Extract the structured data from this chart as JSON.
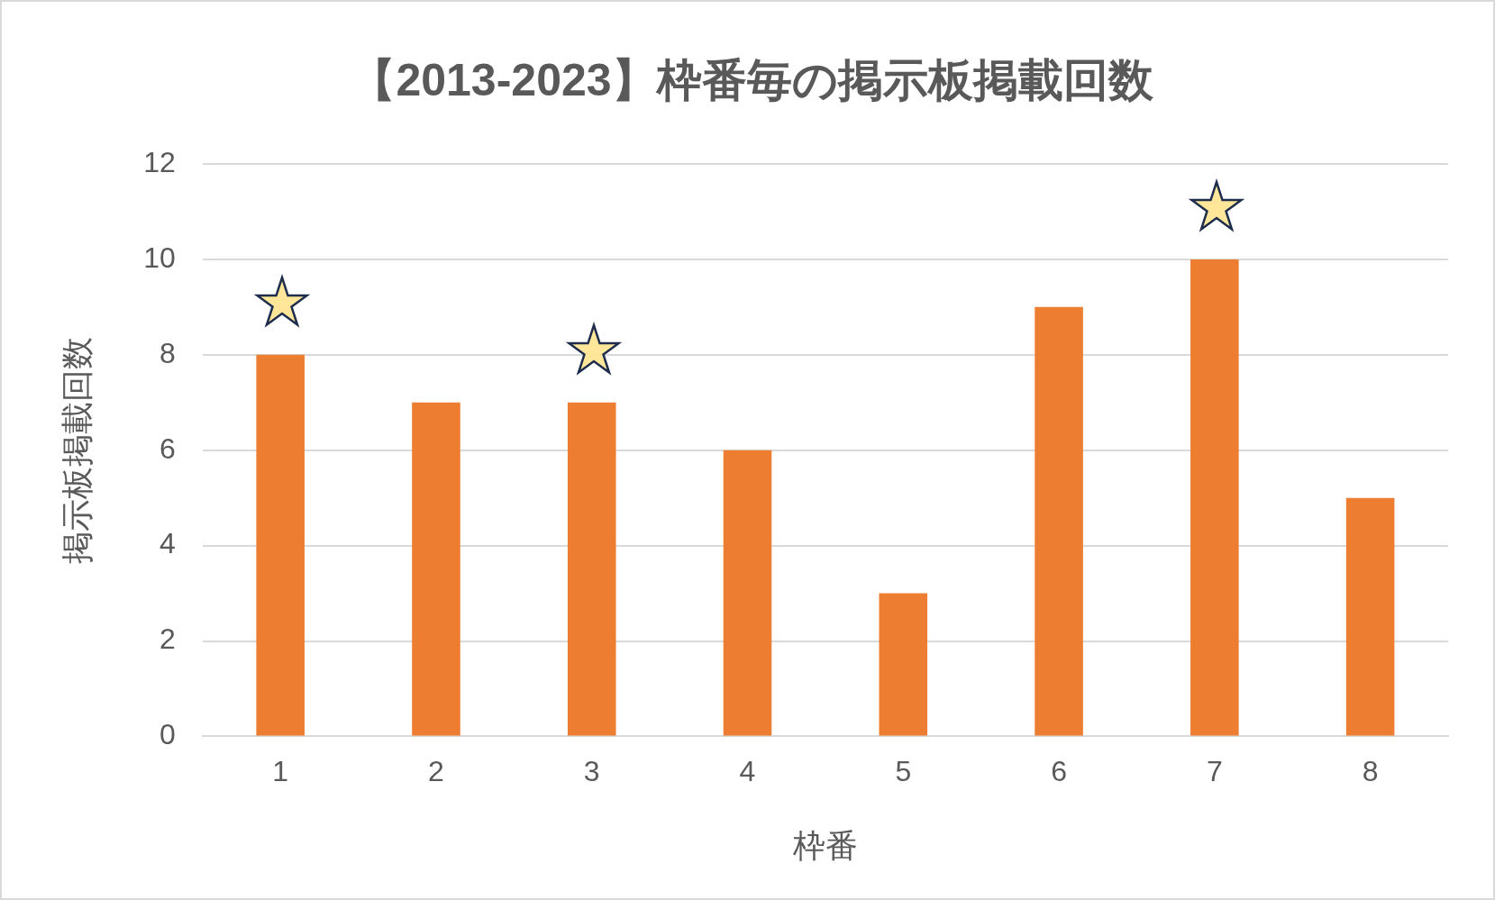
{
  "chart_data": {
    "type": "bar",
    "title": "【2013-2023】枠番毎の掲示板掲載回数",
    "xlabel": "枠番",
    "ylabel": "掲示板掲載回数",
    "categories": [
      "1",
      "2",
      "3",
      "4",
      "5",
      "6",
      "7",
      "8"
    ],
    "values": [
      8,
      7,
      7,
      6,
      3,
      9,
      10,
      5
    ],
    "color": "#ed7d31",
    "ylim": [
      0,
      12
    ],
    "yticks": [
      0,
      2,
      4,
      6,
      8,
      10,
      12
    ],
    "grid": "y",
    "legend": false
  }
}
